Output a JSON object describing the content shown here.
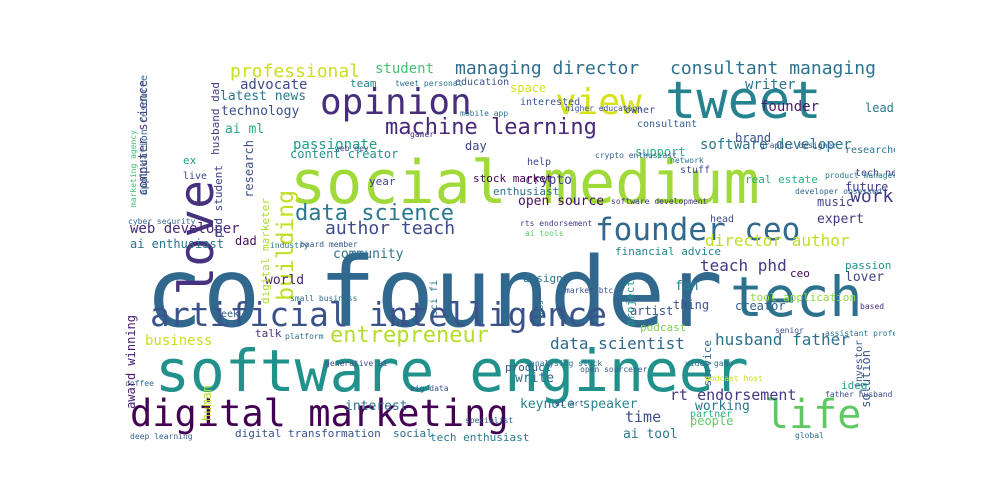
{
  "cloud": {
    "words": [
      {
        "text": "co founder",
        "color": "#31688e"
      },
      {
        "text": "social medium",
        "color": "#a0da39"
      },
      {
        "text": "software engineer",
        "color": "#21918c"
      },
      {
        "text": "tweet",
        "color": "#26828e"
      },
      {
        "text": "tech",
        "color": "#2c728e"
      },
      {
        "text": "love",
        "color": "#46327e"
      },
      {
        "text": "digital marketing",
        "color": "#440154"
      },
      {
        "text": "artificial intelligence",
        "color": "#3b528b"
      },
      {
        "text": "opinion",
        "color": "#472d7b"
      },
      {
        "text": "view",
        "color": "#d8e219"
      },
      {
        "text": "life",
        "color": "#5ec962"
      },
      {
        "text": "founder ceo",
        "color": "#31688e"
      },
      {
        "text": "machine learning",
        "color": "#482878"
      },
      {
        "text": "data science",
        "color": "#2a788e"
      },
      {
        "text": "entrepreneur",
        "color": "#b5de2b"
      },
      {
        "text": "building",
        "color": "#c2df23"
      },
      {
        "text": "managing director",
        "color": "#2e6e8e"
      },
      {
        "text": "consultant managing",
        "color": "#2c728e"
      },
      {
        "text": "professional",
        "color": "#c8e020"
      },
      {
        "text": "author teach",
        "color": "#3e4a89"
      },
      {
        "text": "director author",
        "color": "#bddf26"
      },
      {
        "text": "data scientist",
        "color": "#31688e"
      },
      {
        "text": "husband father",
        "color": "#2d708e"
      },
      {
        "text": "work",
        "color": "#443983"
      },
      {
        "text": "teach phd",
        "color": "#453781"
      },
      {
        "text": "software developer",
        "color": "#2a788e"
      },
      {
        "text": "student",
        "color": "#44bf70"
      },
      {
        "text": "advocate",
        "color": "#3e4989"
      },
      {
        "text": "latest news",
        "color": "#2a788e"
      },
      {
        "text": "technology",
        "color": "#3b528b"
      },
      {
        "text": "writer",
        "color": "#2c728e"
      },
      {
        "text": "founder",
        "color": "#481a6c"
      },
      {
        "text": "lead",
        "color": "#2a788e"
      },
      {
        "text": "ai ml",
        "color": "#27ad81"
      },
      {
        "text": "passionate",
        "color": "#1f9e89"
      },
      {
        "text": "content creator",
        "color": "#21918c"
      },
      {
        "text": "day",
        "color": "#3f4788"
      },
      {
        "text": "open source",
        "color": "#471063"
      },
      {
        "text": "crypto",
        "color": "#433e85"
      },
      {
        "text": "stock market",
        "color": "#440154"
      },
      {
        "text": "real estate",
        "color": "#27ad81"
      },
      {
        "text": "enthusiast",
        "color": "#2c728e"
      },
      {
        "text": "web developer",
        "color": "#482878"
      },
      {
        "text": "ai enthusiast",
        "color": "#2d708e"
      },
      {
        "text": "computer science",
        "color": "#46327e"
      },
      {
        "text": "award winning",
        "color": "#481b6d"
      },
      {
        "text": "community",
        "color": "#2c728e"
      },
      {
        "text": "world",
        "color": "#482173"
      },
      {
        "text": "business",
        "color": "#c8e020"
      },
      {
        "text": "financial advice",
        "color": "#25838e"
      },
      {
        "text": "expert",
        "color": "#443a83"
      },
      {
        "text": "music",
        "color": "#414487"
      },
      {
        "text": "future",
        "color": "#433d84"
      },
      {
        "text": "passion",
        "color": "#1f958b"
      },
      {
        "text": "lover",
        "color": "#3f4889"
      },
      {
        "text": "fan",
        "color": "#27808e"
      },
      {
        "text": "ceo",
        "color": "#440154"
      },
      {
        "text": "creator",
        "color": "#33638d"
      },
      {
        "text": "thing",
        "color": "#3b528b"
      },
      {
        "text": "tool application",
        "color": "#90d743"
      },
      {
        "text": "artist",
        "color": "#39568c"
      },
      {
        "text": "podcast",
        "color": "#7ad151"
      },
      {
        "text": "talk",
        "color": "#46337e"
      },
      {
        "text": "time",
        "color": "#3c4f8a"
      },
      {
        "text": "people",
        "color": "#5ec962"
      },
      {
        "text": "rt endorsement",
        "color": "#453882"
      },
      {
        "text": "working",
        "color": "#2a788e"
      },
      {
        "text": "ai tool",
        "color": "#2a788e"
      },
      {
        "text": "keynote speaker",
        "color": "#25848e"
      },
      {
        "text": "write",
        "color": "#2f6b8e"
      },
      {
        "text": "interest",
        "color": "#2c728e"
      },
      {
        "text": "digital transformation",
        "color": "#3b528b"
      },
      {
        "text": "social",
        "color": "#2d708e"
      },
      {
        "text": "tech enthusiast",
        "color": "#29798e"
      },
      {
        "text": "partner",
        "color": "#29af7f"
      },
      {
        "text": "solution",
        "color": "#38588c"
      },
      {
        "text": "idea",
        "color": "#23a983"
      },
      {
        "text": "human",
        "color": "#b5de2b"
      },
      {
        "text": "product",
        "color": "#365c8d"
      },
      {
        "text": "research",
        "color": "#3b528b"
      },
      {
        "text": "dad",
        "color": "#470e61"
      },
      {
        "text": "husband dad",
        "color": "#423f85"
      },
      {
        "text": "phd student",
        "color": "#414487"
      },
      {
        "text": "digital marketer",
        "color": "#addc30"
      },
      {
        "text": "year",
        "color": "#3f4788"
      },
      {
        "text": "design",
        "color": "#2a768e"
      },
      {
        "text": "project",
        "color": "#1f9a8a"
      },
      {
        "text": "sci fi",
        "color": "#2c738e"
      },
      {
        "text": "geek",
        "color": "#35608d"
      },
      {
        "text": "application resource",
        "color": "#306a8e"
      },
      {
        "text": "support",
        "color": "#29af7f"
      },
      {
        "text": "brand",
        "color": "#3c4f8a"
      },
      {
        "text": "researcher",
        "color": "#2a768e"
      },
      {
        "text": "tech new",
        "color": "#3f4889"
      },
      {
        "text": "ex",
        "color": "#1fa187"
      },
      {
        "text": "live",
        "color": "#404688"
      },
      {
        "text": "head",
        "color": "#3e4c8a"
      },
      {
        "text": "space",
        "color": "#d2e21b"
      },
      {
        "text": "team",
        "color": "#26828e"
      },
      {
        "text": "education",
        "color": "#3b528b"
      },
      {
        "text": "interested",
        "color": "#39568c"
      },
      {
        "text": "consultant",
        "color": "#355f8d"
      },
      {
        "text": "owner",
        "color": "#3e4c8a"
      },
      {
        "text": "help",
        "color": "#3f4788"
      },
      {
        "text": "stuff",
        "color": "#3e4989"
      },
      {
        "text": "service",
        "color": "#31688e"
      },
      {
        "text": "investor",
        "color": "#38588c"
      },
      {
        "text": "marketing agency",
        "color": "#40bd72"
      },
      {
        "text": "cyber security",
        "color": "#31688e"
      },
      {
        "text": "platform",
        "color": "#2d708e"
      },
      {
        "text": "generative ai",
        "color": "#3e4989"
      },
      {
        "text": "based",
        "color": "#46327e"
      },
      {
        "text": "mobile app",
        "color": "#2c728e"
      },
      {
        "text": "tweet personal",
        "color": "#2d708e"
      },
      {
        "text": "higher education",
        "color": "#3b528b"
      },
      {
        "text": "graphic designer",
        "color": "#39568c"
      },
      {
        "text": "software development",
        "color": "#453882"
      },
      {
        "text": "crypto enthusiast",
        "color": "#35608d"
      },
      {
        "text": "network",
        "color": "#2c728e"
      },
      {
        "text": "product manager",
        "color": "#2a788e"
      },
      {
        "text": "developer obsessed",
        "color": "#31688e"
      },
      {
        "text": "senior",
        "color": "#3e4a89"
      },
      {
        "text": "assistant professor",
        "color": "#2c728e"
      },
      {
        "text": "big data",
        "color": "#3b528b"
      },
      {
        "text": "open sourcerer",
        "color": "#365c8d"
      },
      {
        "text": "video game",
        "color": "#2f6c8e"
      },
      {
        "text": "web dev",
        "color": "#3d4e8a"
      },
      {
        "text": "small business",
        "color": "#2c728e"
      },
      {
        "text": "board member",
        "color": "#39568c"
      },
      {
        "text": "industry",
        "color": "#2a788e"
      },
      {
        "text": "market btc",
        "color": "#3b528b"
      },
      {
        "text": "gamer",
        "color": "#46327e"
      },
      {
        "text": "deep learning",
        "color": "#35608d"
      },
      {
        "text": "father husband",
        "color": "#3e4989"
      },
      {
        "text": "specialist",
        "color": "#35608d"
      },
      {
        "text": "global",
        "color": "#2f6b8e"
      },
      {
        "text": "analysing stock",
        "color": "#2c728e"
      },
      {
        "text": "podcast host",
        "color": "#cae11f"
      },
      {
        "text": "coffee",
        "color": "#31688e"
      },
      {
        "text": "sale",
        "color": "#3e4989"
      },
      {
        "text": "ai tools",
        "color": "#5ec962"
      },
      {
        "text": "rts endorsement",
        "color": "#433e85"
      },
      {
        "text": "jobs",
        "color": "#2a788e"
      },
      {
        "text": "ai art",
        "color": "#3b528b"
      }
    ]
  }
}
